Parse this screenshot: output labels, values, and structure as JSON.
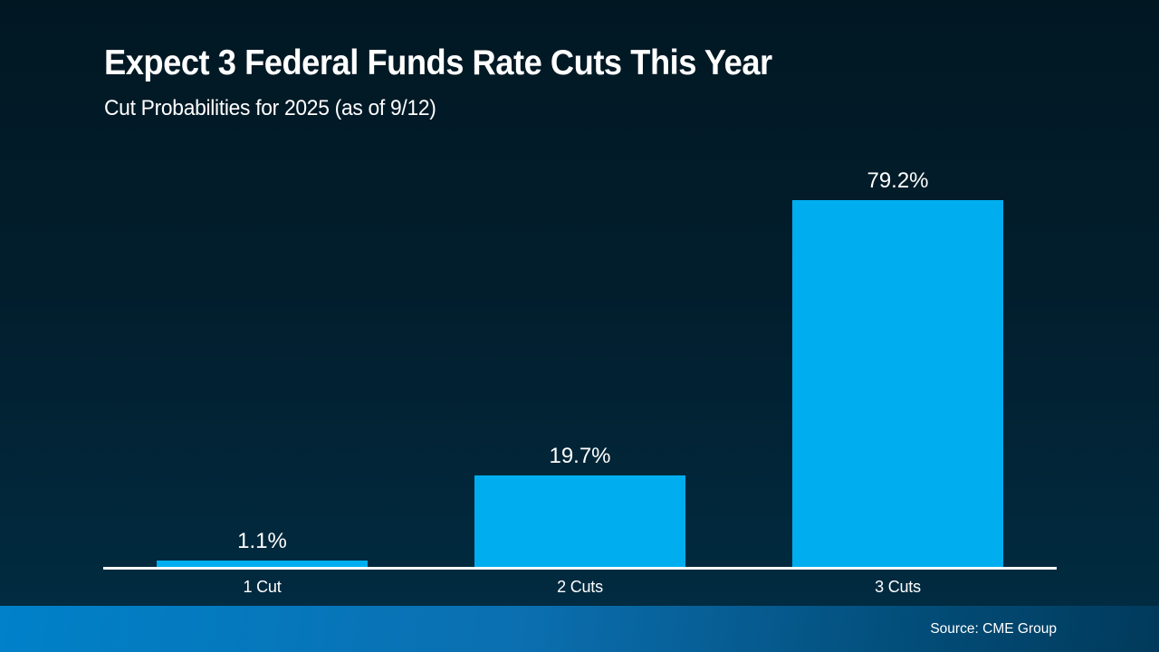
{
  "slide": {
    "title": "Expect 3 Federal Funds Rate Cuts This Year",
    "subtitle": "Cut Probabilities for 2025 (as of 9/12)",
    "source": "Source: CME Group"
  },
  "colors": {
    "background_top": "#011823",
    "background_bottom": "#012C42",
    "bar": "#00AEEF",
    "axis": "#FFFFFF",
    "text": "#FFFFFF",
    "footer_gradient_left": "#0081C9",
    "footer_gradient_right": "#013A5B"
  },
  "chart_data": {
    "type": "bar",
    "title": "Expect 3 Federal Funds Rate Cuts This Year",
    "subtitle": "Cut Probabilities for 2025 (as of 9/12)",
    "categories": [
      "1 Cut",
      "2 Cuts",
      "3 Cuts"
    ],
    "values": [
      1.1,
      19.7,
      79.2
    ],
    "value_labels": [
      "1.1%",
      "19.7%",
      "79.2%"
    ],
    "xlabel": "",
    "ylabel": "",
    "ylim": [
      0,
      100
    ],
    "grid": false,
    "legend": false,
    "bar_color": "#00AEEF",
    "source": "Source: CME Group"
  }
}
